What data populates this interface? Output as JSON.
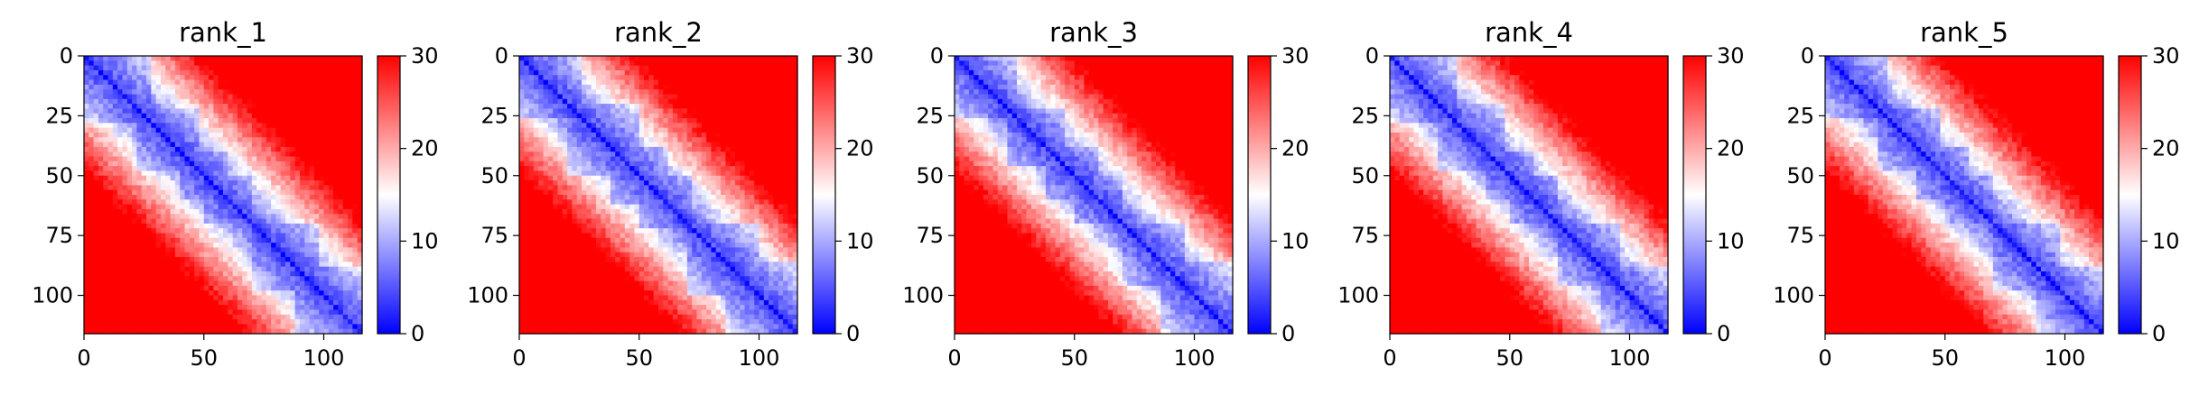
{
  "chart_data": [
    {
      "type": "heatmap",
      "title": "rank_1",
      "n": 116,
      "xlim": [
        0,
        116
      ],
      "ylim": [
        116,
        0
      ],
      "xticks": [
        0,
        50,
        100
      ],
      "yticks": [
        0,
        25,
        50,
        75,
        100
      ],
      "colorbar": {
        "min": 0,
        "max": 30,
        "ticks": [
          0,
          10,
          20,
          30
        ],
        "colormap": "bwr",
        "low_color": "#0000ff",
        "mid_color": "#ffffff",
        "high_color": "#ff0000"
      },
      "diagonal_blocks": [
        [
          0,
          28
        ],
        [
          22,
          48
        ],
        [
          40,
          60
        ],
        [
          50,
          70
        ],
        [
          70,
          98
        ],
        [
          88,
          116
        ]
      ]
    },
    {
      "type": "heatmap",
      "title": "rank_2",
      "n": 116,
      "xlim": [
        0,
        116
      ],
      "ylim": [
        116,
        0
      ],
      "xticks": [
        0,
        50,
        100
      ],
      "yticks": [
        0,
        25,
        50,
        75,
        100
      ],
      "colorbar": {
        "min": 0,
        "max": 30,
        "ticks": [
          0,
          10,
          20,
          30
        ],
        "colormap": "bwr",
        "low_color": "#0000ff",
        "mid_color": "#ffffff",
        "high_color": "#ff0000"
      },
      "diagonal_blocks": [
        [
          0,
          26
        ],
        [
          20,
          50
        ],
        [
          38,
          62
        ],
        [
          50,
          72
        ],
        [
          70,
          100
        ],
        [
          86,
          116
        ]
      ]
    },
    {
      "type": "heatmap",
      "title": "rank_3",
      "n": 116,
      "xlim": [
        0,
        116
      ],
      "ylim": [
        116,
        0
      ],
      "xticks": [
        0,
        50,
        100
      ],
      "yticks": [
        0,
        25,
        50,
        75,
        100
      ],
      "colorbar": {
        "min": 0,
        "max": 30,
        "ticks": [
          0,
          10,
          20,
          30
        ],
        "colormap": "bwr",
        "low_color": "#0000ff",
        "mid_color": "#ffffff",
        "high_color": "#ff0000"
      },
      "diagonal_blocks": [
        [
          0,
          25
        ],
        [
          22,
          46
        ],
        [
          38,
          60
        ],
        [
          50,
          70
        ],
        [
          70,
          96
        ],
        [
          86,
          116
        ]
      ]
    },
    {
      "type": "heatmap",
      "title": "rank_4",
      "n": 116,
      "xlim": [
        0,
        116
      ],
      "ylim": [
        116,
        0
      ],
      "xticks": [
        0,
        50,
        100
      ],
      "yticks": [
        0,
        25,
        50,
        75,
        100
      ],
      "colorbar": {
        "min": 0,
        "max": 30,
        "ticks": [
          0,
          10,
          20,
          30
        ],
        "colormap": "bwr",
        "low_color": "#0000ff",
        "mid_color": "#ffffff",
        "high_color": "#ff0000"
      },
      "diagonal_blocks": [
        [
          0,
          27
        ],
        [
          20,
          48
        ],
        [
          40,
          60
        ],
        [
          50,
          70
        ],
        [
          70,
          96
        ],
        [
          88,
          116
        ]
      ]
    },
    {
      "type": "heatmap",
      "title": "rank_5",
      "n": 116,
      "xlim": [
        0,
        116
      ],
      "ylim": [
        116,
        0
      ],
      "xticks": [
        0,
        50,
        100
      ],
      "yticks": [
        0,
        25,
        50,
        75,
        100
      ],
      "colorbar": {
        "min": 0,
        "max": 30,
        "ticks": [
          0,
          10,
          20,
          30
        ],
        "colormap": "bwr",
        "low_color": "#0000ff",
        "mid_color": "#ffffff",
        "high_color": "#ff0000"
      },
      "diagonal_blocks": [
        [
          0,
          26
        ],
        [
          22,
          48
        ],
        [
          38,
          60
        ],
        [
          50,
          70
        ],
        [
          70,
          98
        ],
        [
          88,
          116
        ]
      ]
    }
  ]
}
